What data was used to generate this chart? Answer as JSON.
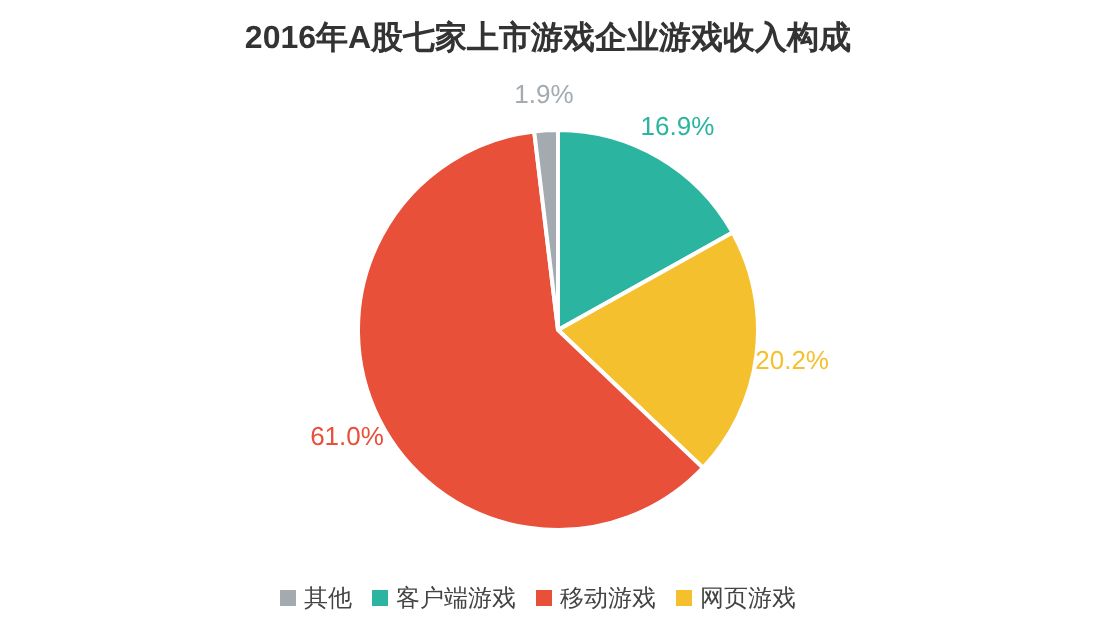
{
  "chart_data": {
    "type": "pie",
    "title": "2016年A股七家上市游戏企业游戏收入构成",
    "categories": [
      "客户端游戏",
      "网页游戏",
      "移动游戏",
      "其他"
    ],
    "values": [
      16.9,
      20.2,
      61.0,
      1.9
    ],
    "value_labels": [
      "16.9%",
      "20.2%",
      "61.0%",
      "1.9%"
    ],
    "colors": [
      "#2bb5a0",
      "#f5c02e",
      "#e8503a",
      "#a3abb0"
    ],
    "legend": "bottom"
  }
}
